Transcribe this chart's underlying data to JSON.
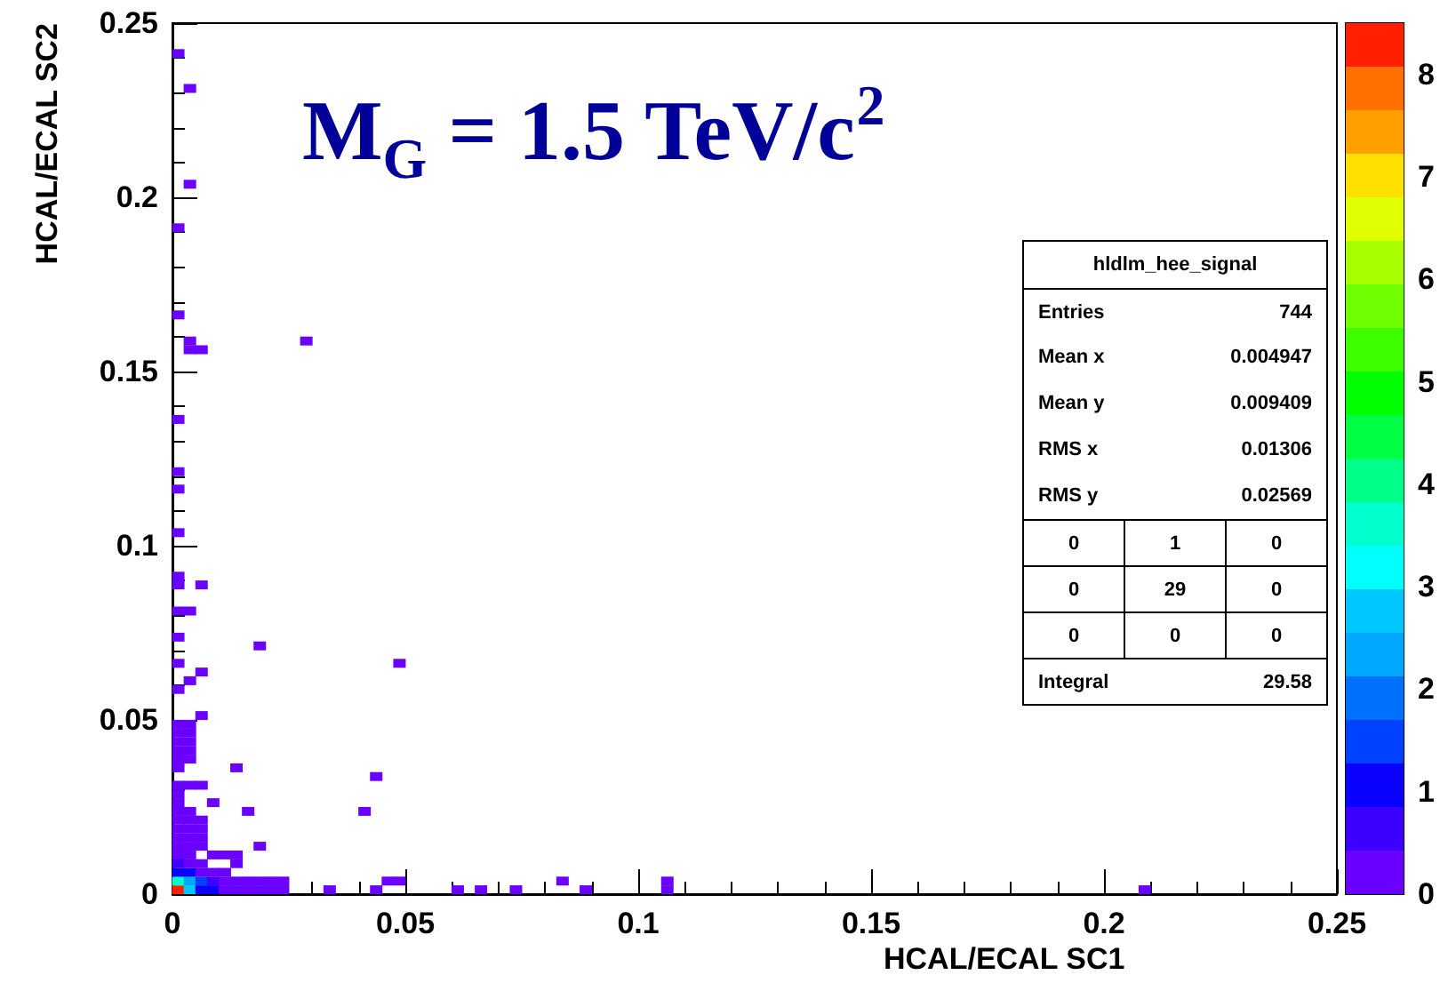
{
  "chart_data": {
    "type": "scatter",
    "title": "M$_{G}$ = 1.5 TeV/c$^{2}$",
    "xlabel": "HCAL/ECAL SC1",
    "ylabel": "HCAL/ECAL SC2",
    "marker": "square",
    "annotations": [
      "hldlm_hee_signal",
      "Entries\t744",
      "Mean x\t0.004947",
      "Mean y\t0.009409",
      "RMS x\t0.01306",
      "RMS y\t0.02569",
      "0\t1\t0",
      "0\t29\t0",
      "0\t0\t0",
      "Integral\t29.58"
    ],
    "xlim": [
      0,
      0.25
    ],
    "xticks": [
      0,
      0.05,
      0.1,
      0.15,
      0.2,
      0.25
    ],
    "ylim": [
      0,
      0.25
    ],
    "yticks": [
      0,
      0.05,
      0.1,
      0.15,
      0.2,
      0.25
    ],
    "clim": [
      0,
      8.5
    ],
    "cticks": [
      0,
      1,
      2,
      3,
      4,
      5,
      6,
      7,
      8
    ],
    "x": [
      0.00125,
      0.00375,
      0.00625,
      0.00875,
      0.01125,
      0.01375,
      0.01625,
      0.01875,
      0.02125,
      0.02375,
      0.03375,
      0.04375,
      0.06125,
      0.06625,
      0.07375,
      0.08875,
      0.10625,
      0.20875,
      0.00125,
      0.00375,
      0.00625,
      0.00875,
      0.01125,
      0.01375,
      0.01625,
      0.01875,
      0.02125,
      0.02375,
      0.04625,
      0.04875,
      0.08375,
      0.10625,
      0.00125,
      0.00375,
      0.00625,
      0.00875,
      0.01125,
      0.00125,
      0.00375,
      0.00625,
      0.01375,
      0.00125,
      0.00375,
      0.00875,
      0.01125,
      0.01375,
      0.00125,
      0.00375,
      0.00625,
      0.01875,
      0.00125,
      0.00375,
      0.00625,
      0.00125,
      0.00375,
      0.00625,
      0.00125,
      0.00375,
      0.00625,
      0.00125,
      0.00375,
      0.01625,
      0.04125,
      0.00125,
      0.00875,
      0.00125,
      0.00125,
      0.00375,
      0.00625,
      0.04375,
      0.00125,
      0.01375,
      0.00125,
      0.00375,
      0.00125,
      0.00375,
      0.00125,
      0.00375,
      0.00125,
      0.00375,
      0.00125,
      0.00375,
      0.00625,
      0.00125,
      0.00375,
      0.00625,
      0.00125,
      0.04875,
      0.01875,
      0.00125,
      0.00125,
      0.00375,
      0.00125,
      0.00625,
      0.00125,
      0.00125,
      0.00125,
      0.00125,
      0.00125,
      0.00375,
      0.00625,
      0.00375,
      0.02875,
      0.00125,
      0.00125,
      0.00375,
      0.00375,
      0.00125
    ],
    "values": [
      0.00125,
      0.00125,
      0.00125,
      0.00125,
      0.00125,
      0.00125,
      0.00125,
      0.00125,
      0.00125,
      0.00125,
      0.00125,
      0.00125,
      0.00125,
      0.00125,
      0.00125,
      0.00125,
      0.00125,
      0.00125,
      0.00375,
      0.00375,
      0.00375,
      0.00375,
      0.00375,
      0.00375,
      0.00375,
      0.00375,
      0.00375,
      0.00375,
      0.00375,
      0.00375,
      0.00375,
      0.00375,
      0.00625,
      0.00625,
      0.00625,
      0.00625,
      0.00625,
      0.00875,
      0.00875,
      0.00875,
      0.00875,
      0.01125,
      0.01125,
      0.01125,
      0.01125,
      0.01125,
      0.01375,
      0.01375,
      0.01375,
      0.01375,
      0.01625,
      0.01625,
      0.01625,
      0.01875,
      0.01875,
      0.01875,
      0.02125,
      0.02125,
      0.02125,
      0.02375,
      0.02375,
      0.02375,
      0.02375,
      0.02625,
      0.02625,
      0.02875,
      0.03125,
      0.03125,
      0.03125,
      0.03375,
      0.03625,
      0.03625,
      0.03875,
      0.03875,
      0.04125,
      0.04125,
      0.04375,
      0.04375,
      0.04625,
      0.04625,
      0.04875,
      0.04875,
      0.05125,
      0.05875,
      0.06125,
      0.06375,
      0.06625,
      0.06625,
      0.07125,
      0.07375,
      0.08125,
      0.08125,
      0.08875,
      0.08875,
      0.09125,
      0.10375,
      0.11625,
      0.12125,
      0.13625,
      0.15625,
      0.15625,
      0.15875,
      0.15875,
      0.16625,
      0.19125,
      0.20375,
      0.23125,
      0.24125
    ],
    "cvalues": [
      8.3,
      2.8,
      1.2,
      0.9,
      0.3,
      0.3,
      0.3,
      0.3,
      0.3,
      0.3,
      0.3,
      0.3,
      0.3,
      0.3,
      0.3,
      0.3,
      0.3,
      0.3,
      3.6,
      2.2,
      1.3,
      0.5,
      0.3,
      0.3,
      0.3,
      0.3,
      0.3,
      0.3,
      0.3,
      0.3,
      0.3,
      0.3,
      1.0,
      0.9,
      0.4,
      0.3,
      0.3,
      0.6,
      0.4,
      0.3,
      0.3,
      0.3,
      0.3,
      0.3,
      0.3,
      0.3,
      0.3,
      0.3,
      0.3,
      0.3,
      0.3,
      0.3,
      0.3,
      0.3,
      0.3,
      0.3,
      0.3,
      0.3,
      0.3,
      0.3,
      0.3,
      0.3,
      0.3,
      0.3,
      0.3,
      0.3,
      0.3,
      0.3,
      0.3,
      0.3,
      0.3,
      0.3,
      0.3,
      0.3,
      0.3,
      0.3,
      0.3,
      0.3,
      0.3,
      0.3,
      0.3,
      0.3,
      0.3,
      0.3,
      0.3,
      0.3,
      0.3,
      0.3,
      0.3,
      0.3,
      0.3,
      0.3,
      0.3,
      0.3,
      0.3,
      0.3,
      0.3,
      0.3,
      0.3,
      0.3,
      0.3,
      0.3,
      0.3,
      0.3,
      0.3,
      0.3,
      0.3,
      0.3
    ]
  }
}
